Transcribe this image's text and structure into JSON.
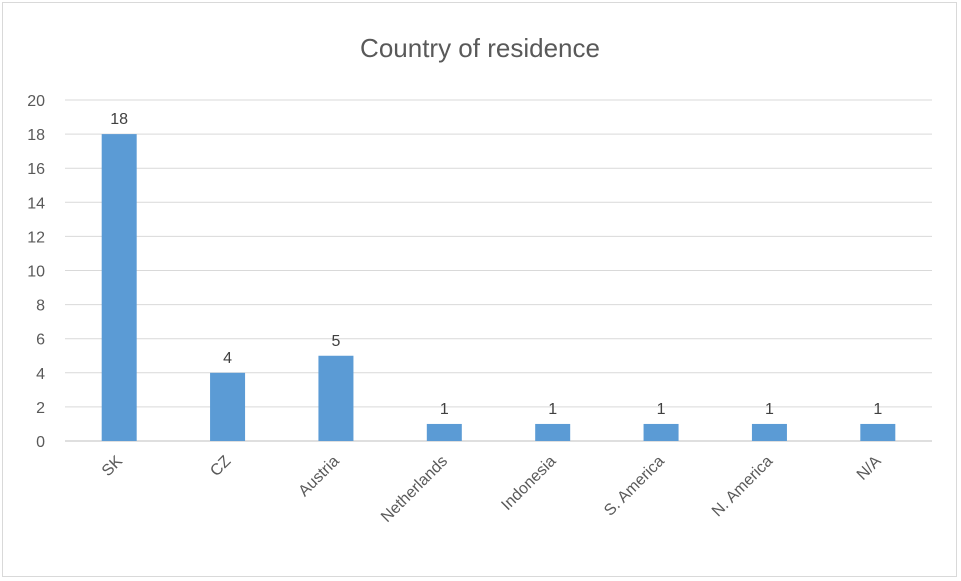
{
  "chart_data": {
    "type": "bar",
    "title": "Country of residence",
    "xlabel": "",
    "ylabel": "",
    "categories": [
      "SK",
      "CZ",
      "Austria",
      "Netherlands",
      "Indonesia",
      "S. America",
      "N. America",
      "N/A"
    ],
    "values": [
      18,
      4,
      5,
      1,
      1,
      1,
      1,
      1
    ],
    "data_labels": [
      "18",
      "4",
      "5",
      "1",
      "1",
      "1",
      "1",
      "1"
    ],
    "ylim": [
      0,
      20
    ],
    "yticks": [
      "0",
      "2",
      "4",
      "6",
      "8",
      "10",
      "12",
      "14",
      "16",
      "18",
      "20"
    ],
    "grid": true,
    "legend": "none",
    "colors": {
      "bar": "#5b9bd5",
      "grid": "#d9d9d9",
      "axis": "#bfbfbf",
      "text": "#595959",
      "frame": "#d9d9d9"
    }
  }
}
